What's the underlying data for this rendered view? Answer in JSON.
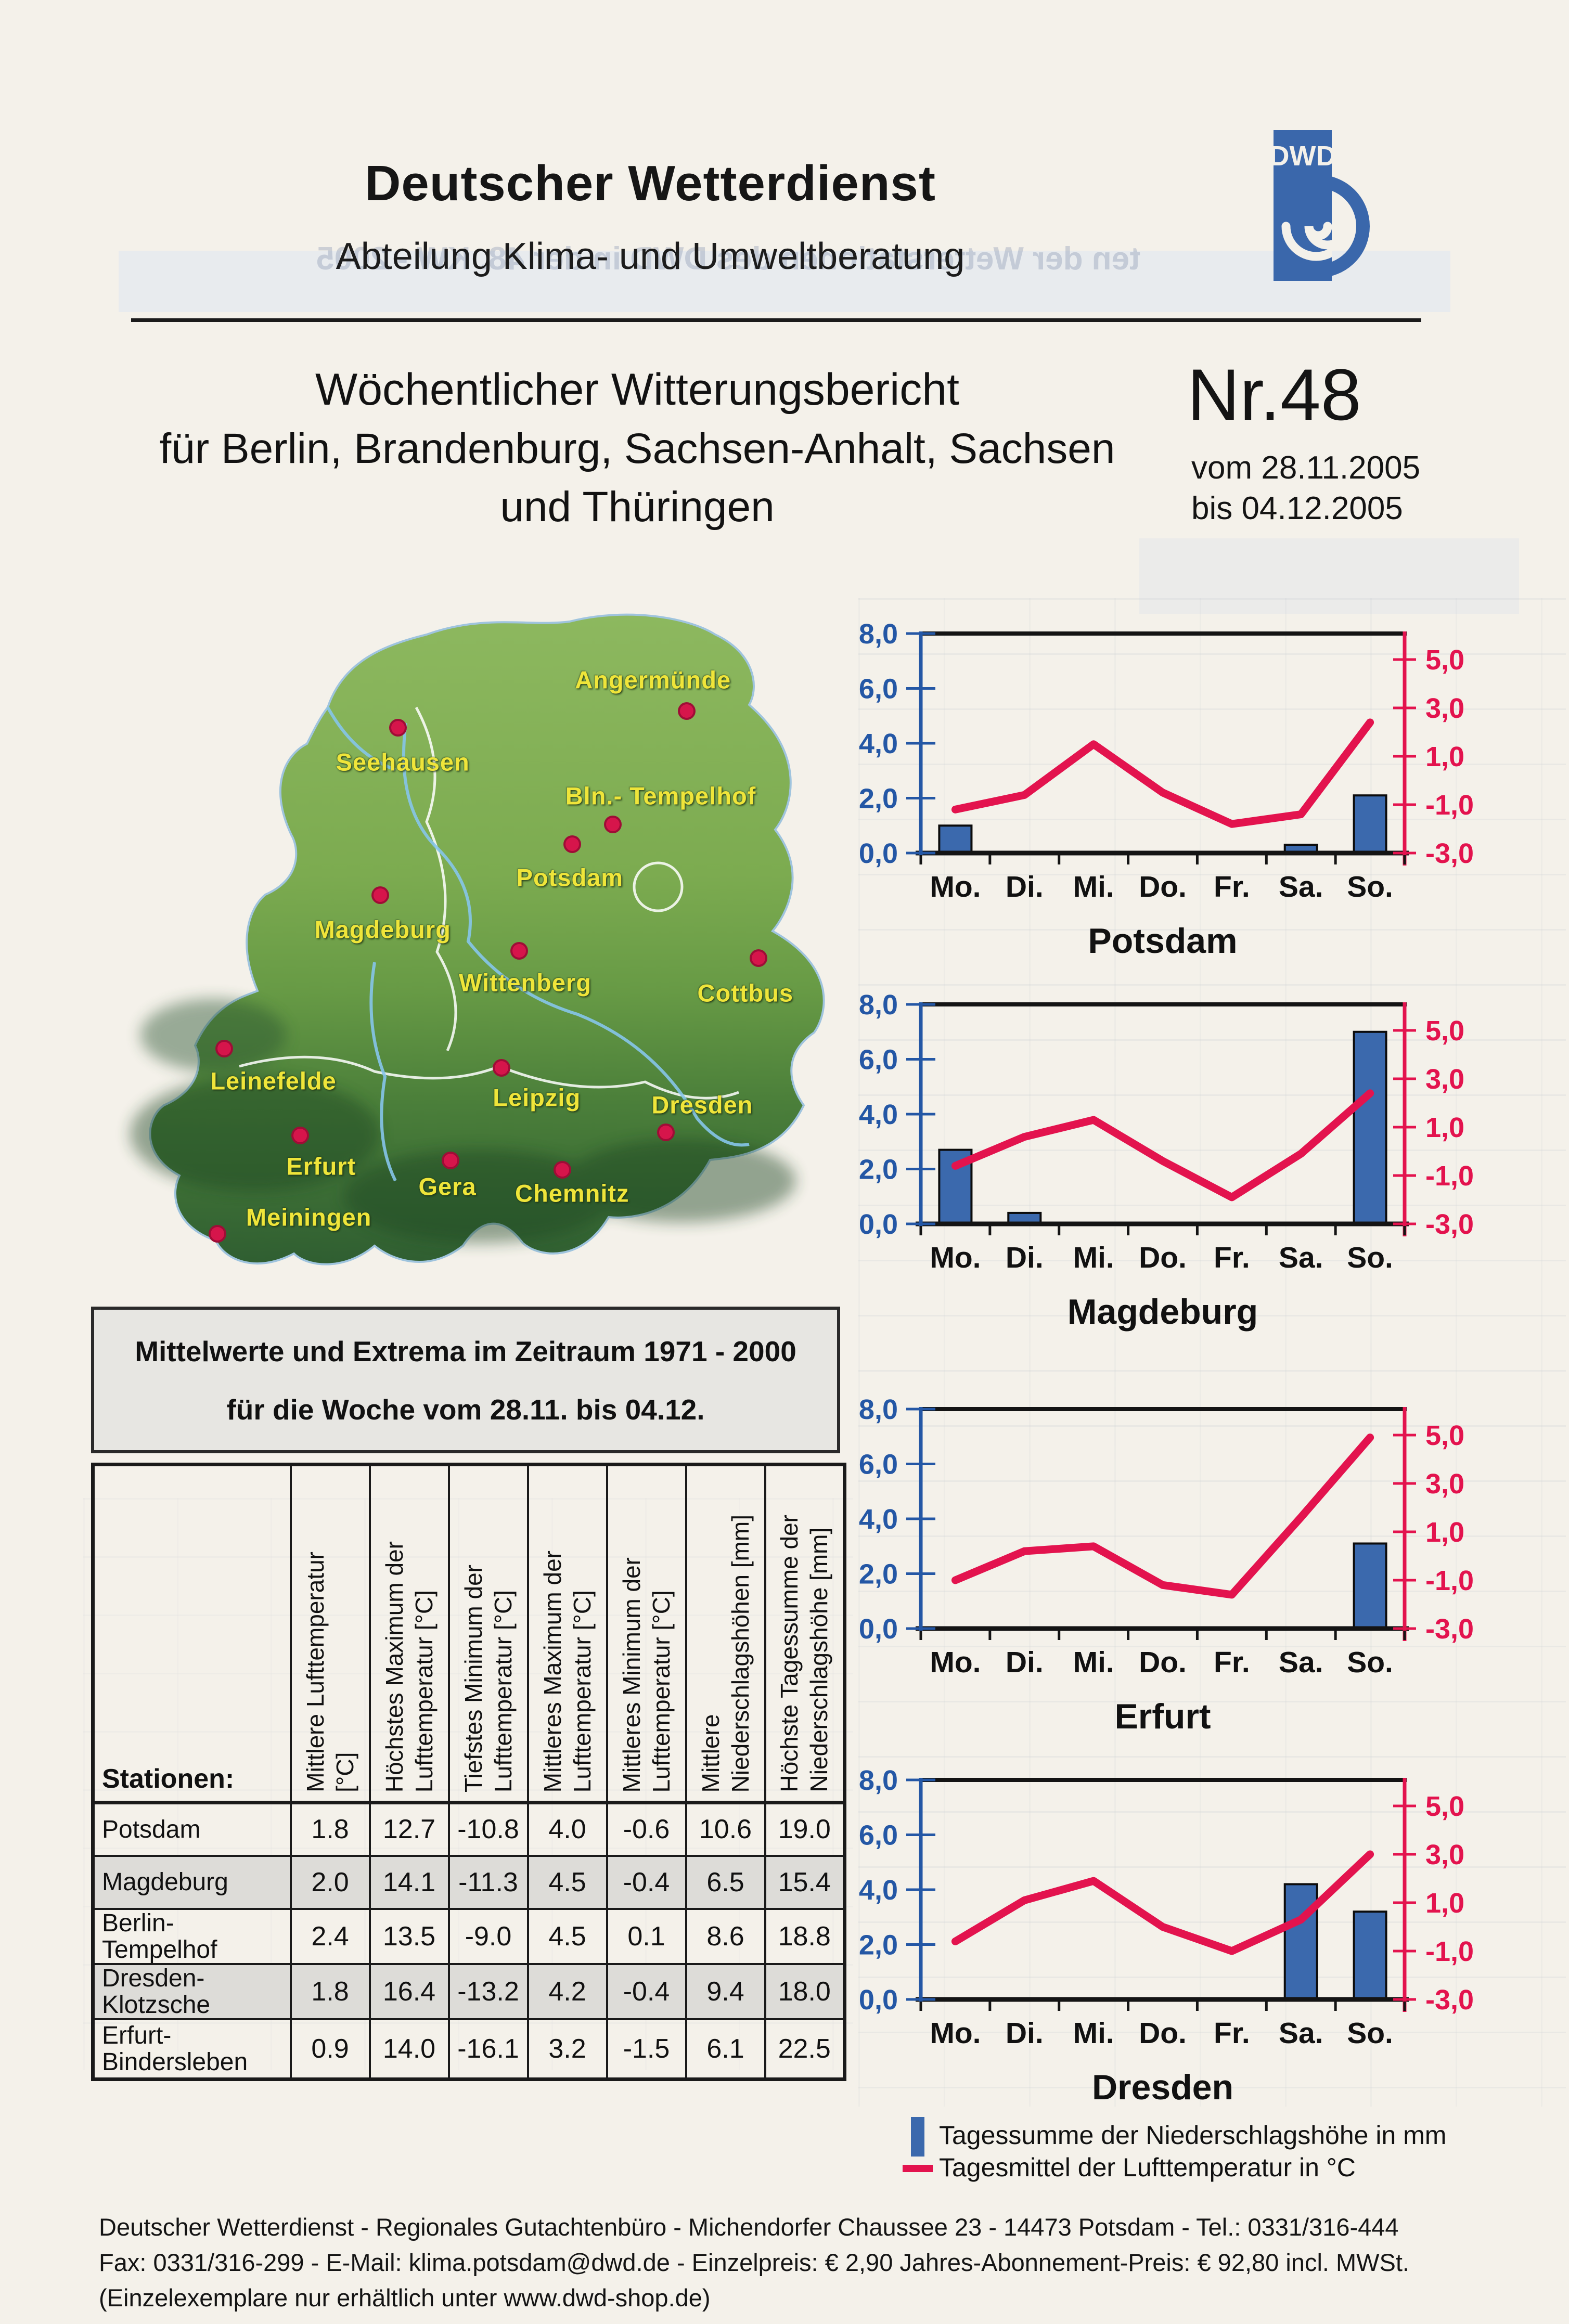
{
  "header": {
    "org": "Deutscher Wetterdienst",
    "dept": "Abteilung Klima- und Umweltberatung",
    "logo_text": "DWD"
  },
  "title_block": {
    "line1": "Wöchentlicher Witterungsbericht",
    "line2": "für Berlin, Brandenburg, Sachsen-Anhalt, Sachsen",
    "line3": "und Thüringen",
    "issue": "Nr.48",
    "from_label": "vom 28.11.2005",
    "to_label": "bis  04.12.2005"
  },
  "map": {
    "cities": [
      {
        "name": "Angermünde",
        "dot": [
          78.4,
          16.3
        ],
        "label": [
          74.0,
          11.8
        ]
      },
      {
        "name": "Seehausen",
        "dot": [
          40.9,
          18.7
        ],
        "label": [
          41.5,
          23.7
        ]
      },
      {
        "name": "Bln.- Tempelhof",
        "dot": [
          68.8,
          32.7
        ],
        "label": [
          75.0,
          28.6
        ]
      },
      {
        "name": "Potsdam",
        "dot": [
          63.5,
          35.6
        ],
        "label": [
          63.2,
          40.4
        ]
      },
      {
        "name": "Magdeburg",
        "dot": [
          38.6,
          42.9
        ],
        "label": [
          38.9,
          47.9
        ]
      },
      {
        "name": "Wittenberg",
        "dot": [
          56.6,
          51.0
        ],
        "label": [
          57.4,
          55.6
        ]
      },
      {
        "name": "Cottbus",
        "dot": [
          87.7,
          52.0
        ],
        "label": [
          86.0,
          57.1
        ]
      },
      {
        "name": "Leinefelde",
        "dot": [
          18.3,
          65.1
        ],
        "label": [
          24.7,
          69.8
        ]
      },
      {
        "name": "Leipzig",
        "dot": [
          54.3,
          67.9
        ],
        "label": [
          58.9,
          72.2
        ]
      },
      {
        "name": "Dresden",
        "dot": [
          75.7,
          77.2
        ],
        "label": [
          80.4,
          73.2
        ]
      },
      {
        "name": "Erfurt",
        "dot": [
          28.2,
          77.7
        ],
        "label": [
          30.9,
          82.1
        ]
      },
      {
        "name": "Gera",
        "dot": [
          47.7,
          81.3
        ],
        "label": [
          47.3,
          85.0
        ]
      },
      {
        "name": "Chemnitz",
        "dot": [
          62.2,
          82.6
        ],
        "label": [
          63.5,
          86.0
        ]
      },
      {
        "name": "Meiningen",
        "dot": [
          17.4,
          91.9
        ],
        "label": [
          29.3,
          89.5
        ]
      }
    ]
  },
  "info_box": {
    "line1": "Mittelwerte und Extrema im Zeitraum 1971 - 2000",
    "line2": "für die Woche vom 28.11. bis 04.12."
  },
  "table": {
    "corner_label": "Stationen:",
    "columns": [
      "Mittlere Lufttemperatur\n[°C]",
      "Höchstes Maximum der\nLufttemperatur [°C]",
      "Tiefstes Minimum der\nLufttemperatur [°C]",
      "Mittleres Maximum der\nLufttemperatur [°C]",
      "Mittleres Minimum der\nLufttemperatur [°C]",
      "Mittlere\nNiederschlagshöhen [mm]",
      "Höchste Tagessumme der\nNiederschlagshöhe [mm]"
    ],
    "rows": [
      {
        "station": "Potsdam",
        "shaded": false,
        "values": [
          "1.8",
          "12.7",
          "-10.8",
          "4.0",
          "-0.6",
          "10.6",
          "19.0"
        ]
      },
      {
        "station": "Magdeburg",
        "shaded": true,
        "values": [
          "2.0",
          "14.1",
          "-11.3",
          "4.5",
          "-0.4",
          "6.5",
          "15.4"
        ]
      },
      {
        "station": "Berlin-\nTempelhof",
        "shaded": false,
        "values": [
          "2.4",
          "13.5",
          "-9.0",
          "4.5",
          "0.1",
          "8.6",
          "18.8"
        ]
      },
      {
        "station": "Dresden-\nKlotzsche",
        "shaded": true,
        "values": [
          "1.8",
          "16.4",
          "-13.2",
          "4.2",
          "-0.4",
          "9.4",
          "18.0"
        ]
      },
      {
        "station": "Erfurt-\nBindersleben",
        "shaded": false,
        "values": [
          "0.9",
          "14.0",
          "-16.1",
          "3.2",
          "-1.5",
          "6.1",
          "22.5"
        ]
      }
    ]
  },
  "chart_data": [
    {
      "type": "combo-bar-line",
      "title": "Potsdam",
      "categories": [
        "Mo.",
        "Di.",
        "Mi.",
        "Do.",
        "Fr.",
        "Sa.",
        "So."
      ],
      "series": [
        {
          "name": "Tagessumme der Niederschlagshöhe in mm",
          "type": "bar",
          "axis": "left",
          "values": [
            1.0,
            0,
            0,
            0,
            0,
            0.3,
            2.1
          ]
        },
        {
          "name": "Tagesmittel der Lufttemperatur in °C",
          "type": "line",
          "axis": "right",
          "values": [
            -1.2,
            -0.6,
            1.5,
            -0.5,
            -1.8,
            -1.4,
            2.4
          ]
        }
      ],
      "y_left": {
        "min": 0,
        "max": 8,
        "step": 2
      },
      "y_right": {
        "min": -3,
        "max": 5,
        "step": 2
      }
    },
    {
      "type": "combo-bar-line",
      "title": "Magdeburg",
      "categories": [
        "Mo.",
        "Di.",
        "Mi.",
        "Do.",
        "Fr.",
        "Sa.",
        "So."
      ],
      "series": [
        {
          "name": "Tagessumme der Niederschlagshöhe in mm",
          "type": "bar",
          "axis": "left",
          "values": [
            2.7,
            0.4,
            0,
            0,
            0,
            0,
            7.0
          ]
        },
        {
          "name": "Tagesmittel der Lufttemperatur in °C",
          "type": "line",
          "axis": "right",
          "values": [
            -0.6,
            0.6,
            1.3,
            -0.4,
            -1.9,
            -0.1,
            2.4
          ]
        }
      ],
      "y_left": {
        "min": 0,
        "max": 8,
        "step": 2
      },
      "y_right": {
        "min": -3,
        "max": 5,
        "step": 2
      }
    },
    {
      "type": "combo-bar-line",
      "title": "Erfurt",
      "categories": [
        "Mo.",
        "Di.",
        "Mi.",
        "Do.",
        "Fr.",
        "Sa.",
        "So."
      ],
      "series": [
        {
          "name": "Tagessumme der Niederschlagshöhe in mm",
          "type": "bar",
          "axis": "left",
          "values": [
            0,
            0,
            0,
            0,
            0,
            0,
            3.1
          ]
        },
        {
          "name": "Tagesmittel der Lufttemperatur in °C",
          "type": "line",
          "axis": "right",
          "values": [
            -1.0,
            0.2,
            0.4,
            -1.2,
            -1.6,
            1.6,
            4.9
          ]
        }
      ],
      "y_left": {
        "min": 0,
        "max": 8,
        "step": 2
      },
      "y_right": {
        "min": -3,
        "max": 5,
        "step": 2
      }
    },
    {
      "type": "combo-bar-line",
      "title": "Dresden",
      "categories": [
        "Mo.",
        "Di.",
        "Mi.",
        "Do.",
        "Fr.",
        "Sa.",
        "So."
      ],
      "series": [
        {
          "name": "Tagessumme der Niederschlagshöhe in mm",
          "type": "bar",
          "axis": "left",
          "values": [
            0,
            0,
            0,
            0,
            0,
            4.2,
            3.2
          ]
        },
        {
          "name": "Tagesmittel der Lufttemperatur in °C",
          "type": "line",
          "axis": "right",
          "values": [
            -0.6,
            1.1,
            1.9,
            0.0,
            -1.0,
            0.3,
            3.0
          ]
        }
      ],
      "y_left": {
        "min": 0,
        "max": 8,
        "step": 2
      },
      "y_right": {
        "min": -3,
        "max": 5,
        "step": 2
      }
    }
  ],
  "legend": {
    "bar_label": "Tagessumme der Niederschlagshöhe in mm",
    "line_label": "Tagesmittel der Lufttemperatur in °C"
  },
  "footer": {
    "line1": "Deutscher Wetterdienst - Regionales Gutachtenbüro - Michendorfer Chaussee 23 - 14473 Potsdam  -  Tel.: 0331/316-444",
    "line2": "Fax: 0331/316-299  -  E-Mail: klima.potsdam@dwd.de  -  Einzelpreis: € 2,90 Jahres-Abonnement-Preis: € 92,80 incl. MWSt.",
    "line3": "(Einzelexemplare nur erhältlich unter www.dwd-shop.de)"
  },
  "artifacts": {
    "bleedthrough_text": "ten der Wetterstationen des DWD in der 48. KW - 2005"
  },
  "colors": {
    "bar_fill": "#3b69ad",
    "temp_line": "#e3134e",
    "left_axis": "#2457a5",
    "right_axis": "#e3134e",
    "frame": "#141414",
    "map_label": "#efe53a",
    "city_dot": "#d6154b",
    "logo_blue": "#3a67ab",
    "paper": "#f4f1ea"
  }
}
